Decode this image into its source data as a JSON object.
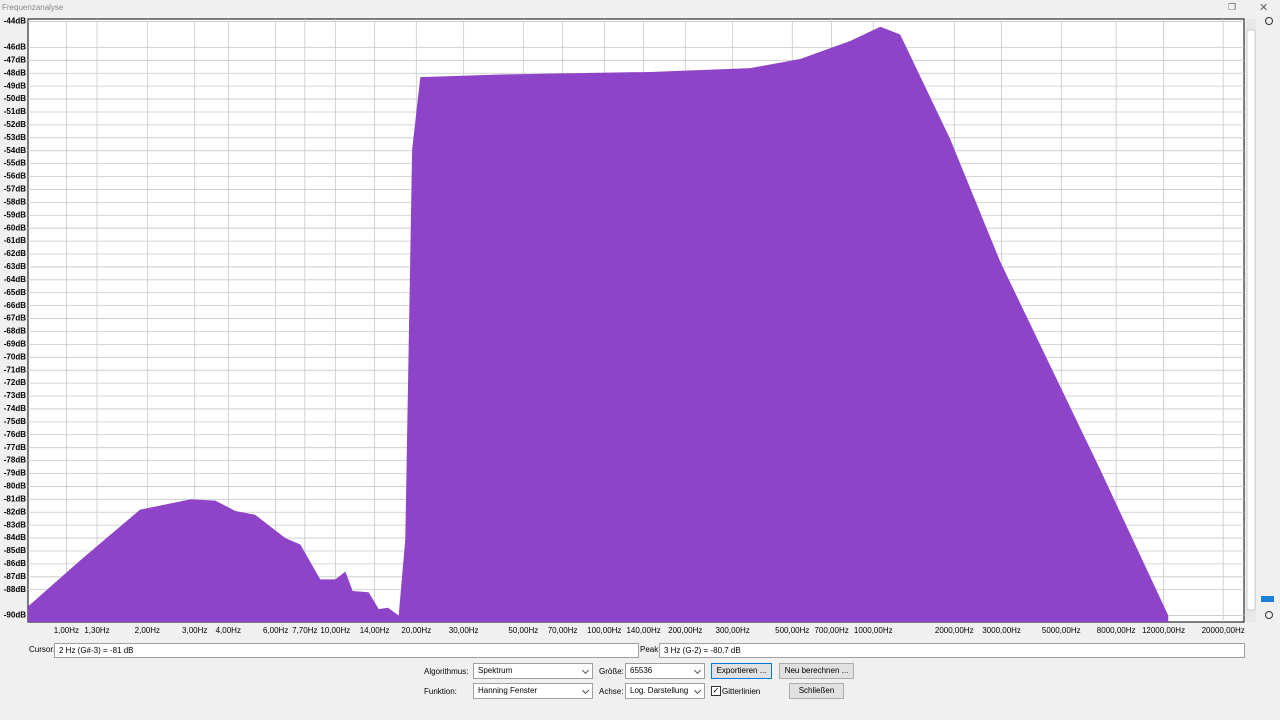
{
  "window_title": "Frequenzanalyse",
  "chart_data": {
    "type": "area",
    "log_x": true,
    "grid": true,
    "color": "#8e44c8",
    "x": [
      0.72,
      1.13,
      1.88,
      2.89,
      3.58,
      4.25,
      5.04,
      6.52,
      7.41,
      8.79,
      10,
      10.9,
      11.6,
      13.3,
      14.5,
      15.7,
      17.2,
      18.2,
      19.3,
      20.7,
      41.1,
      148,
      349,
      535,
      821,
      1062,
      1259,
      1932,
      2966,
      6980,
      12500
    ],
    "values": [
      -89.3,
      -85.7,
      -81.8,
      -81.0,
      -81.1,
      -81.9,
      -82.2,
      -84.0,
      -84.5,
      -87.2,
      -87.2,
      -86.6,
      -88.1,
      -88.2,
      -89.5,
      -89.4,
      -90.0,
      -84.1,
      -53.9,
      -48.3,
      -48.1,
      -47.9,
      -47.6,
      -46.9,
      -45.5,
      -44.4,
      -45.0,
      -53.1,
      -62.6,
      -78.7,
      -90.0
    ],
    "xlim": [
      0.72,
      23900
    ],
    "ylim": [
      -90.5,
      -43.8
    ],
    "xticks": [
      {
        "value": 1,
        "label": "1,00Hz"
      },
      {
        "value": 1.3,
        "label": "1,30Hz"
      },
      {
        "value": 2,
        "label": "2,00Hz"
      },
      {
        "value": 3,
        "label": "3,00Hz"
      },
      {
        "value": 4,
        "label": "4,00Hz"
      },
      {
        "value": 6,
        "label": "6,00Hz"
      },
      {
        "value": 7.7,
        "label": "7,70Hz"
      },
      {
        "value": 10,
        "label": "10,00Hz"
      },
      {
        "value": 14,
        "label": "14,00Hz"
      },
      {
        "value": 20,
        "label": "20,00Hz"
      },
      {
        "value": 30,
        "label": "30,00Hz"
      },
      {
        "value": 50,
        "label": "50,00Hz"
      },
      {
        "value": 70,
        "label": "70,00Hz"
      },
      {
        "value": 100,
        "label": "100,00Hz"
      },
      {
        "value": 140,
        "label": "140,00Hz"
      },
      {
        "value": 200,
        "label": "200,00Hz"
      },
      {
        "value": 300,
        "label": "300,00Hz"
      },
      {
        "value": 500,
        "label": "500,00Hz"
      },
      {
        "value": 700,
        "label": "700,00Hz"
      },
      {
        "value": 1000,
        "label": "1000,00Hz"
      },
      {
        "value": 2000,
        "label": "2000,00Hz"
      },
      {
        "value": 3000,
        "label": "3000,00Hz"
      },
      {
        "value": 5000,
        "label": "5000,00Hz"
      },
      {
        "value": 8000,
        "label": "8000,00Hz"
      },
      {
        "value": 12000,
        "label": "12000,00Hz"
      },
      {
        "value": 20000,
        "label": "20000,00Hz"
      }
    ],
    "yticks": [
      {
        "value": -44,
        "label": "-44dB"
      },
      {
        "value": -46,
        "label": "-46dB"
      },
      {
        "value": -47,
        "label": "-47dB"
      },
      {
        "value": -48,
        "label": "-48dB"
      },
      {
        "value": -49,
        "label": "-49dB"
      },
      {
        "value": -50,
        "label": "-50dB"
      },
      {
        "value": -51,
        "label": "-51dB"
      },
      {
        "value": -52,
        "label": "-52dB"
      },
      {
        "value": -53,
        "label": "-53dB"
      },
      {
        "value": -54,
        "label": "-54dB"
      },
      {
        "value": -55,
        "label": "-55dB"
      },
      {
        "value": -56,
        "label": "-56dB"
      },
      {
        "value": -57,
        "label": "-57dB"
      },
      {
        "value": -58,
        "label": "-58dB"
      },
      {
        "value": -59,
        "label": "-59dB"
      },
      {
        "value": -60,
        "label": "-60dB"
      },
      {
        "value": -61,
        "label": "-61dB"
      },
      {
        "value": -62,
        "label": "-62dB"
      },
      {
        "value": -63,
        "label": "-63dB"
      },
      {
        "value": -64,
        "label": "-64dB"
      },
      {
        "value": -65,
        "label": "-65dB"
      },
      {
        "value": -66,
        "label": "-66dB"
      },
      {
        "value": -67,
        "label": "-67dB"
      },
      {
        "value": -68,
        "label": "-68dB"
      },
      {
        "value": -69,
        "label": "-69dB"
      },
      {
        "value": -70,
        "label": "-70dB"
      },
      {
        "value": -71,
        "label": "-71dB"
      },
      {
        "value": -72,
        "label": "-72dB"
      },
      {
        "value": -73,
        "label": "-73dB"
      },
      {
        "value": -74,
        "label": "-74dB"
      },
      {
        "value": -75,
        "label": "-75dB"
      },
      {
        "value": -76,
        "label": "-76dB"
      },
      {
        "value": -77,
        "label": "-77dB"
      },
      {
        "value": -78,
        "label": "-78dB"
      },
      {
        "value": -79,
        "label": "-79dB"
      },
      {
        "value": -80,
        "label": "-80dB"
      },
      {
        "value": -81,
        "label": "-81dB"
      },
      {
        "value": -82,
        "label": "-82dB"
      },
      {
        "value": -83,
        "label": "-83dB"
      },
      {
        "value": -84,
        "label": "-84dB"
      },
      {
        "value": -85,
        "label": "-85dB"
      },
      {
        "value": -86,
        "label": "-86dB"
      },
      {
        "value": -87,
        "label": "-87dB"
      },
      {
        "value": -88,
        "label": "-88dB"
      },
      {
        "value": -90,
        "label": "-90dB"
      }
    ]
  },
  "ui": {
    "cursor_label": "Cursor:",
    "cursor_value": "2 Hz (G#-3) = -81 dB",
    "peak_label": "Peak:",
    "peak_value": "3 Hz (G-2) = -80,7 dB",
    "algorithm_label": "Algorithmus:",
    "algorithm_value": "Spektrum",
    "size_label": "Größe:",
    "size_value": "65536",
    "export_button": "Exportieren ...",
    "recalc_button": "Neu berechnen ...",
    "function_label": "Funktion:",
    "function_value": "Hanning Fenster",
    "axis_label": "Achse:",
    "axis_value": "Log. Darstellung",
    "grid_checkbox": "Gitterlinien",
    "close_button": "Schließen"
  }
}
